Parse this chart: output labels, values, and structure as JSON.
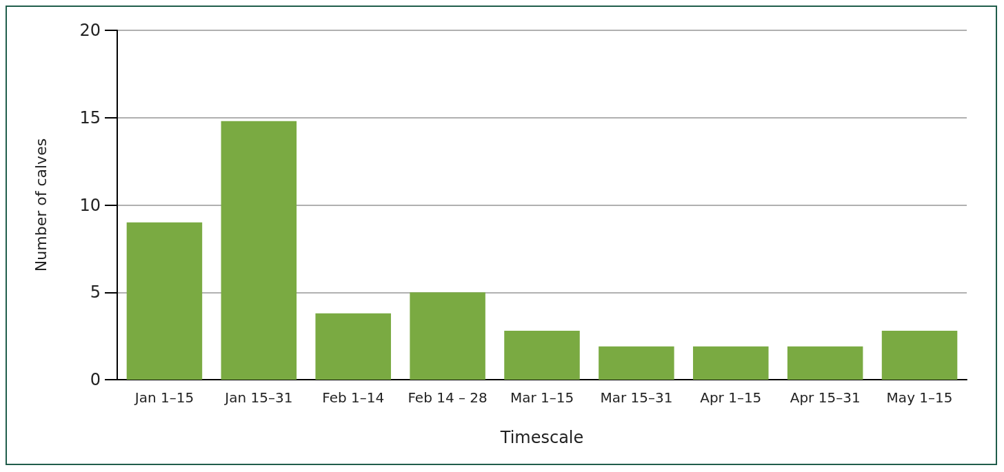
{
  "chart_data": {
    "type": "bar",
    "xlabel": "Timescale",
    "ylabel": "Number of calves",
    "categories": [
      "Jan 1–15",
      "Jan 15–31",
      "Feb 1–14",
      "Feb 14 – 28",
      "Mar 1–15",
      "Mar 15–31",
      "Apr 1–15",
      "Apr 15–31",
      "May 1–15"
    ],
    "values": [
      9,
      14.8,
      3.8,
      5,
      2.8,
      1.9,
      1.9,
      1.9,
      2.8
    ],
    "color": "#7aaa42",
    "ylim": [
      0,
      20
    ],
    "yticks": [
      0,
      5,
      10,
      15,
      20
    ],
    "grid": "y"
  }
}
